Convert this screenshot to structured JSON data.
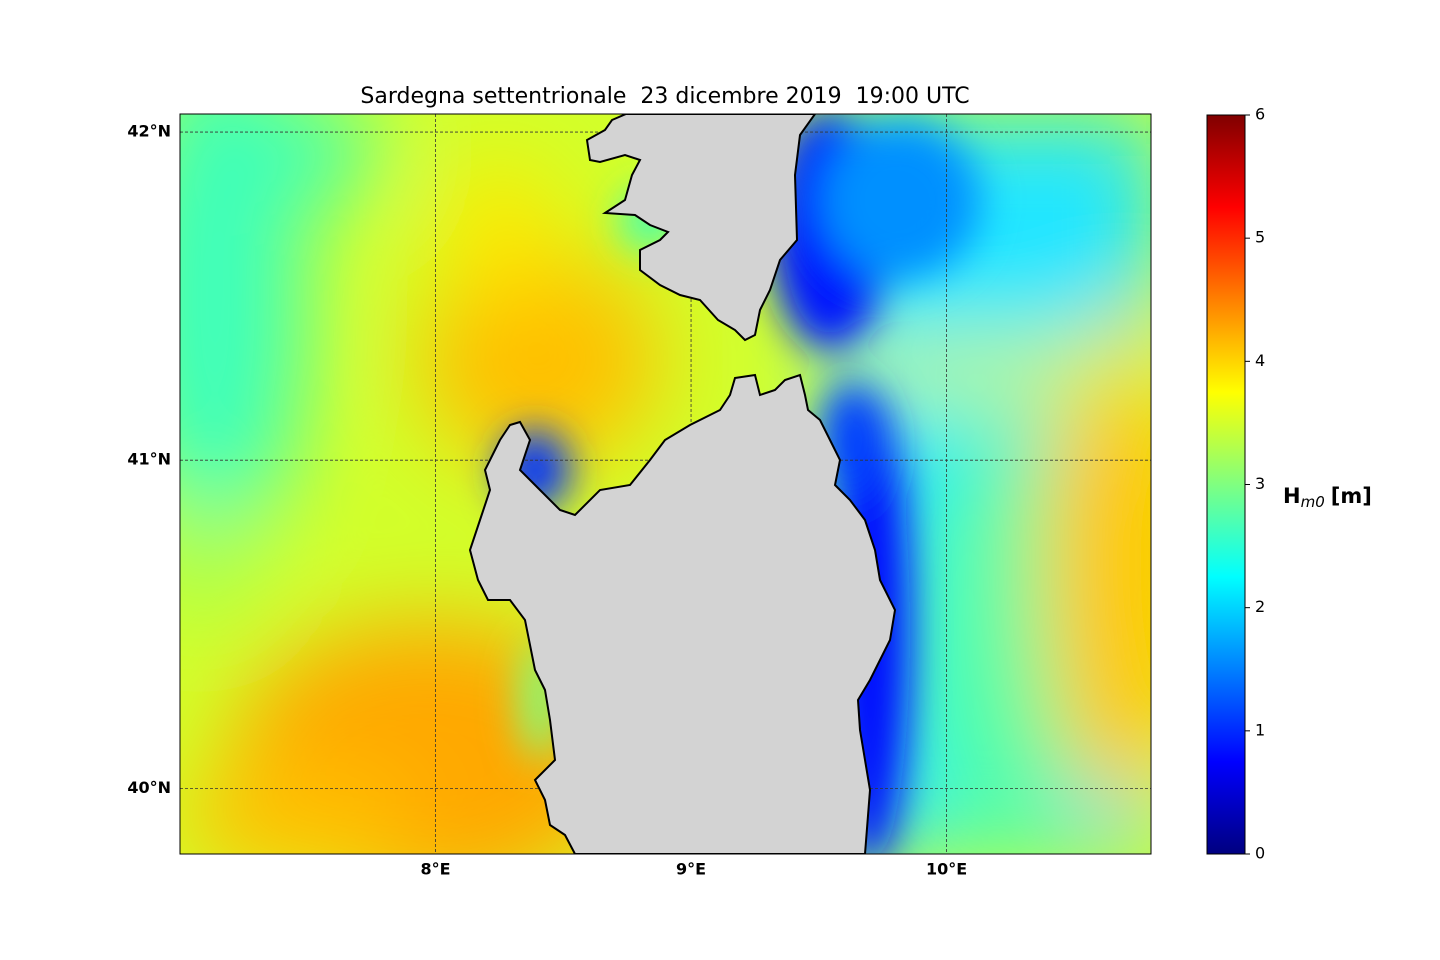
{
  "chart_data": {
    "type": "map",
    "title": "Sardegna settentrionale  23 dicembre 2019  19:00 UTC",
    "xlim": [
      7.0,
      10.8
    ],
    "ylim": [
      39.8,
      42.055
    ],
    "xticks": [
      {
        "value": 8,
        "label": "8°E"
      },
      {
        "value": 9,
        "label": "9°E"
      },
      {
        "value": 10,
        "label": "10°E"
      }
    ],
    "yticks": [
      {
        "value": 40,
        "label": "40°N"
      },
      {
        "value": 41,
        "label": "41°N"
      },
      {
        "value": 42,
        "label": "42°N"
      }
    ],
    "grid": true,
    "colorbar": {
      "label": {
        "symbol": "H",
        "subscript": "m0",
        "unit": "[m]"
      },
      "lim": [
        0,
        6
      ],
      "ticks": [
        0,
        1,
        2,
        3,
        4,
        5,
        6
      ],
      "colormap": "jet"
    }
  }
}
